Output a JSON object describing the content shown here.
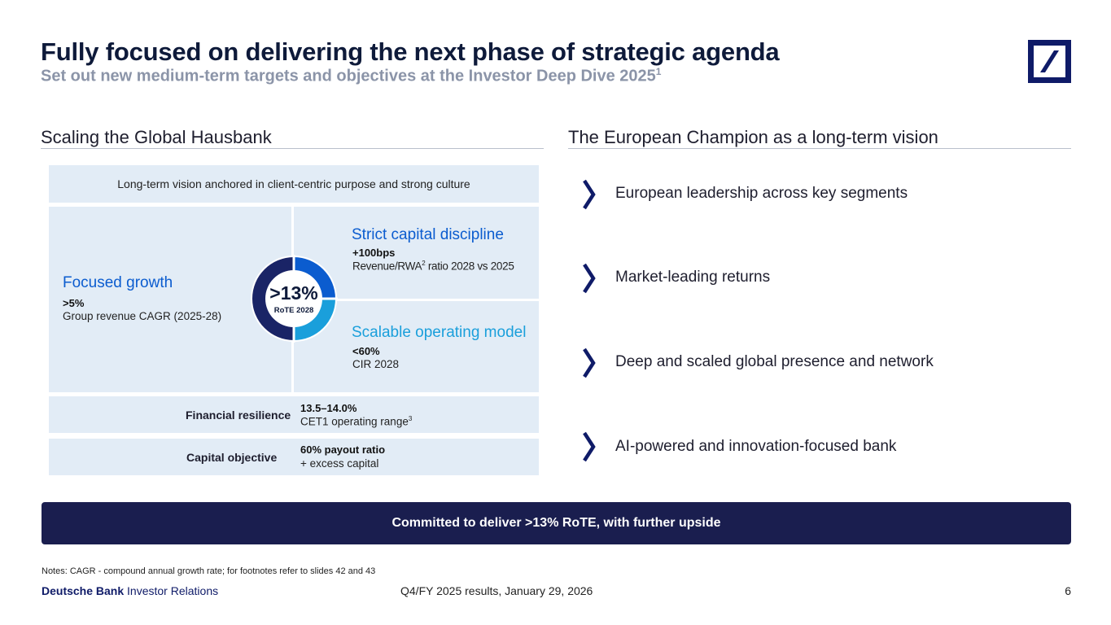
{
  "header": {
    "title": "Fully focused on delivering the next phase of strategic agenda",
    "subtitle": "Set out new medium-term targets and objectives at the Investor Deep Dive 2025",
    "subtitle_footnote": "1"
  },
  "left_section": {
    "heading": "Scaling the Global Hausbank",
    "vision": "Long-term vision anchored in client-centric purpose and strong culture",
    "focused_growth": {
      "title": "Focused growth",
      "kpi": ">5%",
      "desc": "Group revenue CAGR (2025-28)"
    },
    "capital_discipline": {
      "title": "Strict capital discipline",
      "kpi": "+100bps",
      "desc_pre": "Revenue/RWA",
      "desc_sup": "2",
      "desc_post": " ratio 2028 vs 2025"
    },
    "operating_model": {
      "title": "Scalable operating model",
      "kpi": "<60%",
      "desc": "CIR 2028"
    },
    "rote": {
      "value": ">13%",
      "label": "RoTE 2028"
    },
    "financial_resilience": {
      "label": "Financial resilience",
      "kpi": "13.5–14.0%",
      "desc": "CET1 operating range",
      "desc_sup": "3"
    },
    "capital_objective": {
      "label": "Capital objective",
      "kpi": "60% payout ratio",
      "desc": "+ excess capital"
    }
  },
  "right_section": {
    "heading": "The European Champion as a long-term vision",
    "items": [
      "European leadership across key segments",
      "Market-leading returns",
      "Deep and scaled global presence and network",
      "AI-powered and innovation-focused bank"
    ]
  },
  "banner": "Committed to deliver >13% RoTE, with further upside",
  "notes": "Notes: CAGR - compound annual growth rate; for footnotes refer to slides 42 and 43",
  "footer": {
    "brand": "Deutsche Bank",
    "brand_suffix": "Investor Relations",
    "center": "Q4/FY 2025 results, January 29, 2026",
    "page": "6"
  },
  "colors": {
    "navy": "#0e1a3a",
    "brand_blue": "#0f1b68",
    "accent_blue": "#0b5ccf",
    "light_blue": "#1a9fdb",
    "panel": "#e2ecf6",
    "banner": "#1a1e4f",
    "subtitle_grey": "#8b94a8"
  }
}
